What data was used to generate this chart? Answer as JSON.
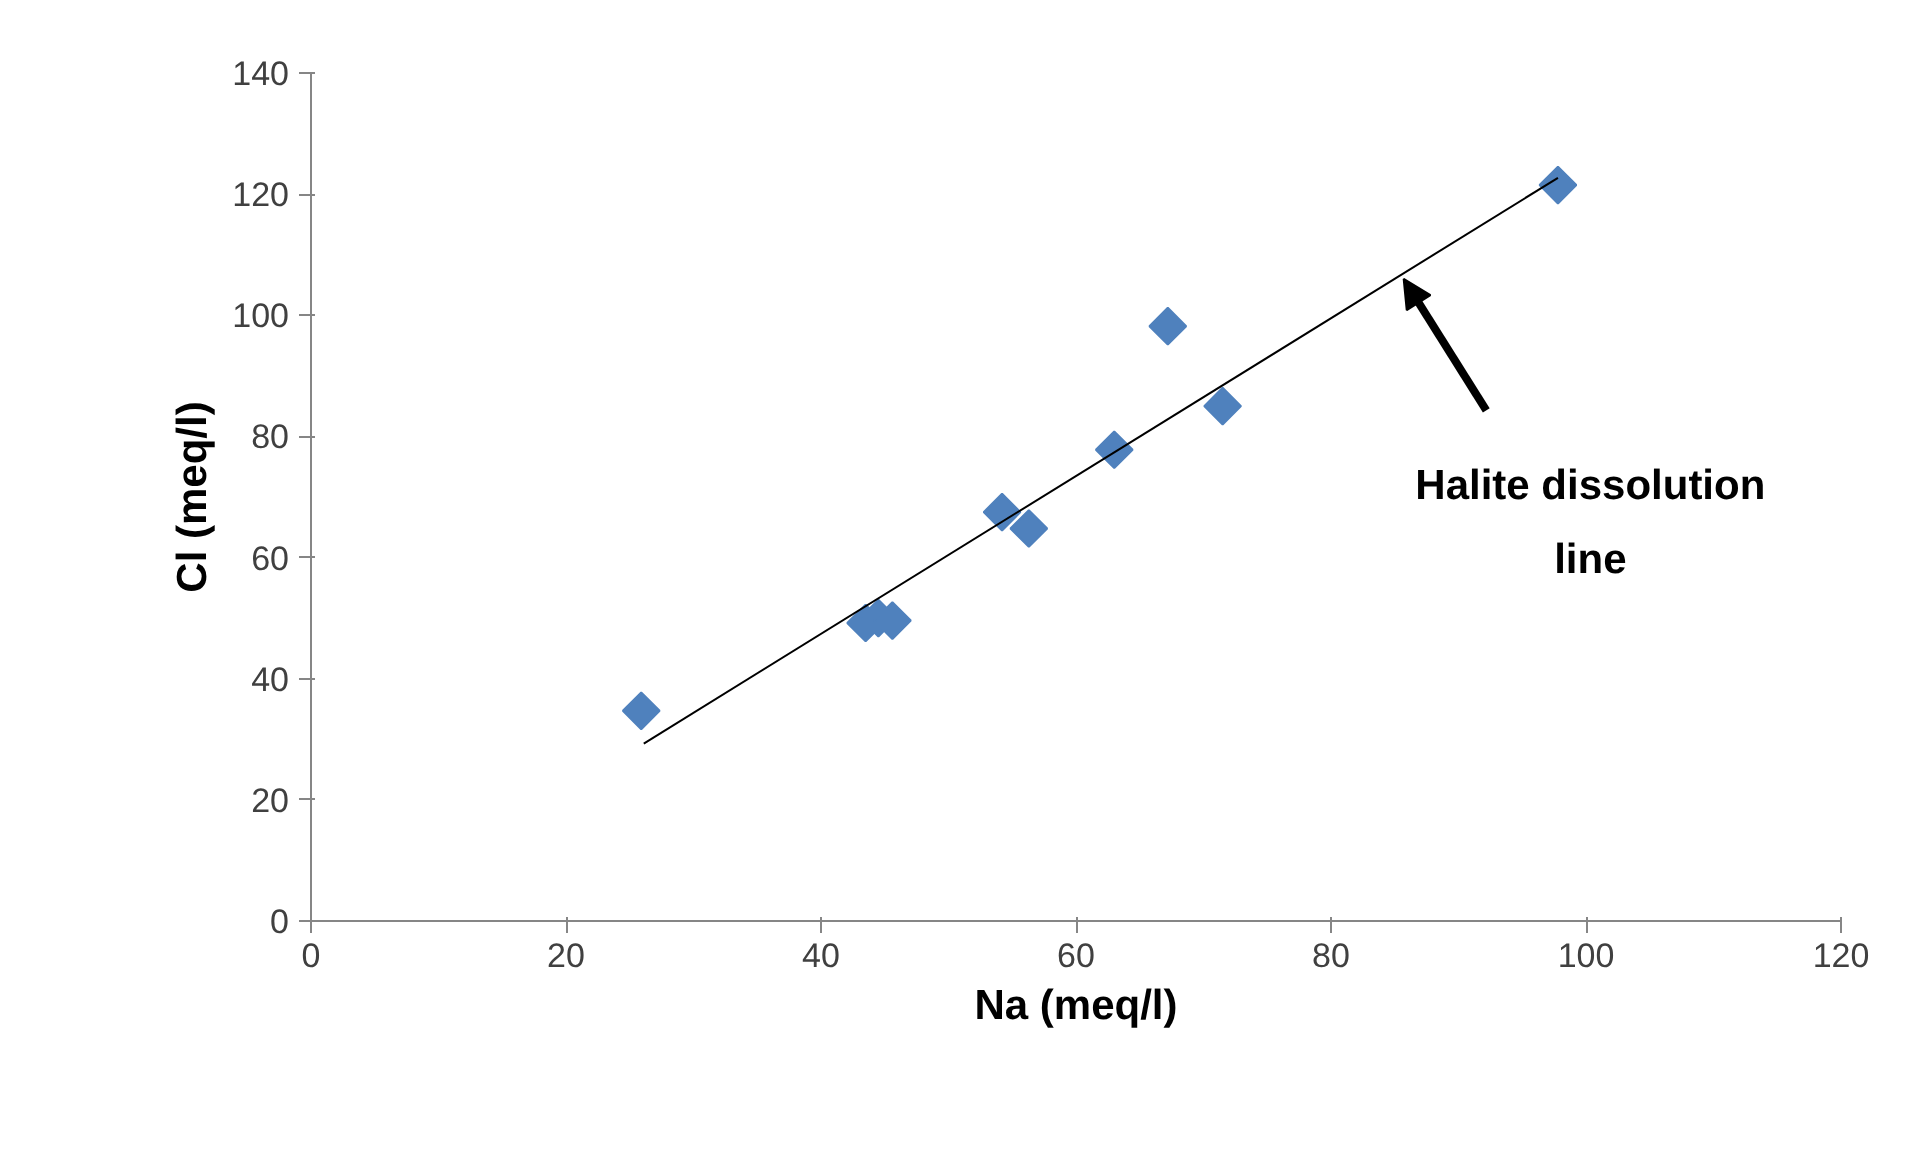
{
  "chart_data": {
    "type": "scatter",
    "xlabel": "Na (meq/l)",
    "ylabel": "Cl (meq/l)",
    "xlim": [
      0,
      120
    ],
    "xticks": [
      0,
      20,
      40,
      60,
      80,
      100,
      120
    ],
    "ylim": [
      0,
      140
    ],
    "yticks": [
      0,
      20,
      40,
      60,
      80,
      100,
      120,
      140
    ],
    "grid": false,
    "marker": "diamond",
    "series": [
      {
        "color": "#4f81bd",
        "x": [
          25.9,
          43.5,
          44.5,
          45.6,
          54.2,
          56.3,
          63.0,
          67.2,
          71.5,
          97.8
        ],
        "values": [
          34.7,
          49.2,
          50.0,
          49.6,
          67.5,
          64.8,
          77.8,
          98.2,
          85.0,
          121.5
        ]
      },
      {
        "type": "line",
        "color": "#000000",
        "line_style": "solid",
        "marker": "none",
        "x": [
          26.1,
          97.8
        ],
        "values": [
          29.3,
          122.7
        ]
      }
    ],
    "annotations": [
      {
        "text": "Halite dissolution\nline",
        "x": 85.7,
        "y": 106
      }
    ]
  }
}
